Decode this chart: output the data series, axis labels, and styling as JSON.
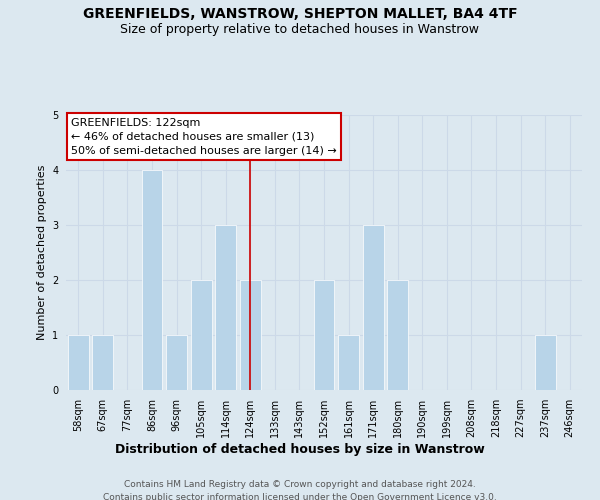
{
  "title": "GREENFIELDS, WANSTROW, SHEPTON MALLET, BA4 4TF",
  "subtitle": "Size of property relative to detached houses in Wanstrow",
  "xlabel": "Distribution of detached houses by size in Wanstrow",
  "ylabel": "Number of detached properties",
  "bar_labels": [
    "58sqm",
    "67sqm",
    "77sqm",
    "86sqm",
    "96sqm",
    "105sqm",
    "114sqm",
    "124sqm",
    "133sqm",
    "143sqm",
    "152sqm",
    "161sqm",
    "171sqm",
    "180sqm",
    "190sqm",
    "199sqm",
    "208sqm",
    "218sqm",
    "227sqm",
    "237sqm",
    "246sqm"
  ],
  "bar_values": [
    1,
    1,
    0,
    4,
    1,
    2,
    3,
    2,
    0,
    0,
    2,
    1,
    3,
    2,
    0,
    0,
    0,
    0,
    0,
    1,
    0
  ],
  "bar_color": "#b8d4e8",
  "bar_edge_color": "#ffffff",
  "highlight_bar_index": 7,
  "highlight_line_color": "#cc0000",
  "annotation_title": "GREENFIELDS: 122sqm",
  "annotation_line1": "← 46% of detached houses are smaller (13)",
  "annotation_line2": "50% of semi-detached houses are larger (14) →",
  "annotation_box_facecolor": "#ffffff",
  "annotation_box_edgecolor": "#cc0000",
  "ylim": [
    0,
    5
  ],
  "yticks": [
    0,
    1,
    2,
    3,
    4,
    5
  ],
  "grid_color": "#ccd9e8",
  "background_color": "#dce8f0",
  "footer_line1": "Contains HM Land Registry data © Crown copyright and database right 2024.",
  "footer_line2": "Contains public sector information licensed under the Open Government Licence v3.0.",
  "title_fontsize": 10,
  "subtitle_fontsize": 9,
  "xlabel_fontsize": 9,
  "ylabel_fontsize": 8,
  "tick_fontsize": 7,
  "footer_fontsize": 6.5,
  "annotation_fontsize": 8
}
